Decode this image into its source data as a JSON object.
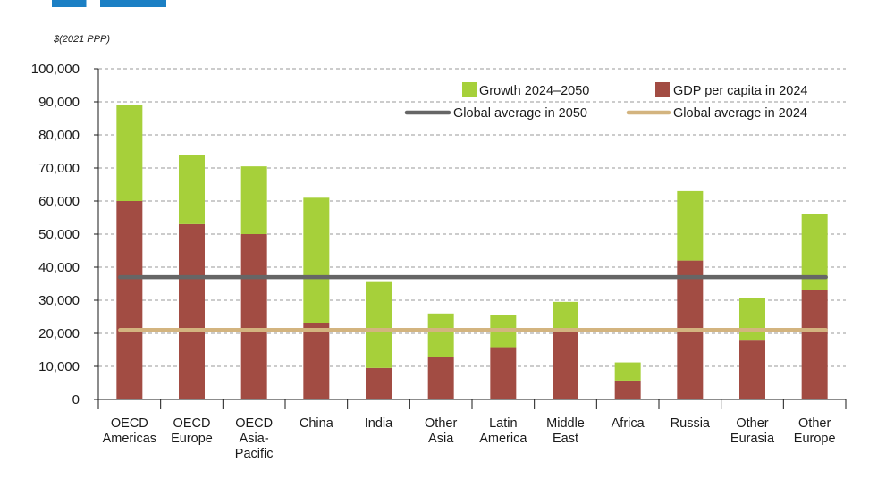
{
  "colors": {
    "base": "#a24c43",
    "growth": "#a6d03a",
    "avg2050": "#666666",
    "avg2024": "#d3b47f",
    "grid": "#9a9a9a",
    "axis": "#1a1a1a"
  },
  "chart_data": {
    "type": "bar",
    "stacked": true,
    "title": "",
    "unit_label": "$(2021 PPP)",
    "xlabel": "",
    "ylabel": "",
    "ylim": [
      0,
      100000
    ],
    "y_ticks": [
      "0",
      "10,000",
      "20,000",
      "30,000",
      "40,000",
      "50,000",
      "60,000",
      "70,000",
      "80,000",
      "90,000",
      "100,000"
    ],
    "categories": [
      [
        "OECD",
        "Americas"
      ],
      [
        "OECD",
        "Europe"
      ],
      [
        "OECD",
        "Asia-",
        "Pacific"
      ],
      [
        "China"
      ],
      [
        "India"
      ],
      [
        "Other",
        "Asia"
      ],
      [
        "Latin",
        "America"
      ],
      [
        "Middle",
        "East"
      ],
      [
        "Africa"
      ],
      [
        "Russia"
      ],
      [
        "Other",
        "Eurasia"
      ],
      [
        "Other",
        "Europe"
      ]
    ],
    "series": [
      {
        "name": "GDP per capita in 2024",
        "color_key": "base",
        "values": [
          60000,
          53000,
          50000,
          23000,
          9500,
          12800,
          15800,
          20300,
          5700,
          42000,
          17800,
          33000
        ]
      },
      {
        "name": "Growth 2024–2050",
        "color_key": "growth",
        "values": [
          29000,
          21000,
          20500,
          38000,
          26000,
          13200,
          9800,
          9200,
          5500,
          21000,
          12800,
          23000
        ]
      }
    ],
    "reference_lines": [
      {
        "name": "Global average in 2050",
        "value": 37000,
        "color_key": "avg2050"
      },
      {
        "name": "Global average in 2024",
        "value": 21000,
        "color_key": "avg2024"
      }
    ],
    "grid": true,
    "legend_position": "top-right"
  }
}
